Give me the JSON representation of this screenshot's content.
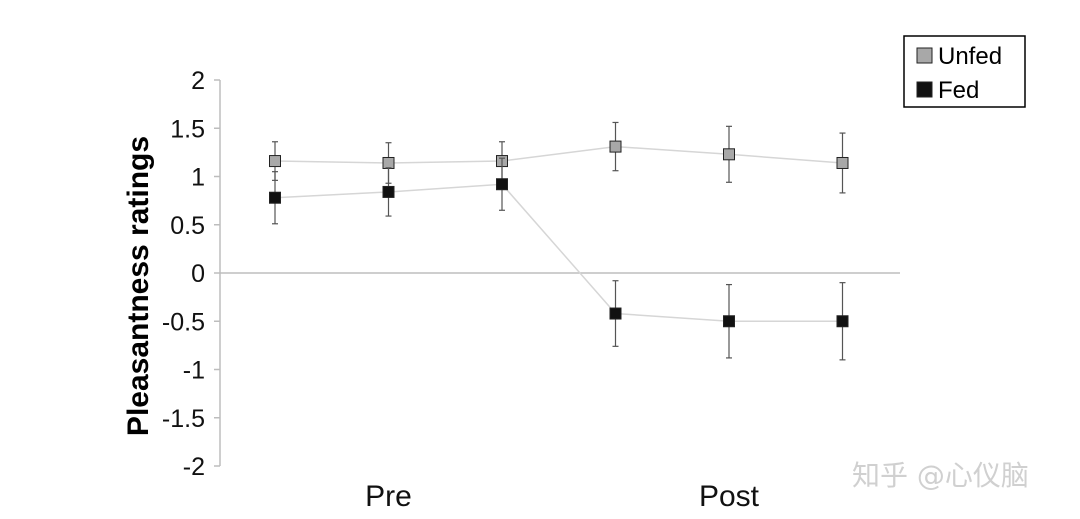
{
  "chart_data": {
    "type": "line",
    "ylabel": "Pleasantness ratings",
    "ylim": [
      -2,
      2
    ],
    "yticks": [
      2,
      1.5,
      1,
      0.5,
      0,
      -0.5,
      -1,
      -1.5,
      -2
    ],
    "ytick_labels": [
      "2",
      "1.5",
      "1",
      "0.5",
      "0",
      "-0.5",
      "-1",
      "-1.5",
      "-2"
    ],
    "x": [
      1,
      2,
      3,
      4,
      5,
      6
    ],
    "groups": [
      {
        "label": "Pre",
        "center_x": 2
      },
      {
        "label": "Post",
        "center_x": 5
      }
    ],
    "series": [
      {
        "name": "Unfed",
        "color": "#a8a8a8",
        "values": [
          1.16,
          1.14,
          1.16,
          1.31,
          1.23,
          1.14
        ],
        "errors": [
          0.2,
          0.21,
          0.2,
          0.25,
          0.29,
          0.31
        ]
      },
      {
        "name": "Fed",
        "color": "#111111",
        "values": [
          0.78,
          0.84,
          0.92,
          -0.42,
          -0.5,
          -0.5
        ],
        "errors": [
          0.27,
          0.25,
          0.27,
          0.34,
          0.38,
          0.4
        ]
      }
    ],
    "legend_position": "top-right",
    "grid": false,
    "zero_line": true
  },
  "watermark": "知乎 @心仪脑"
}
